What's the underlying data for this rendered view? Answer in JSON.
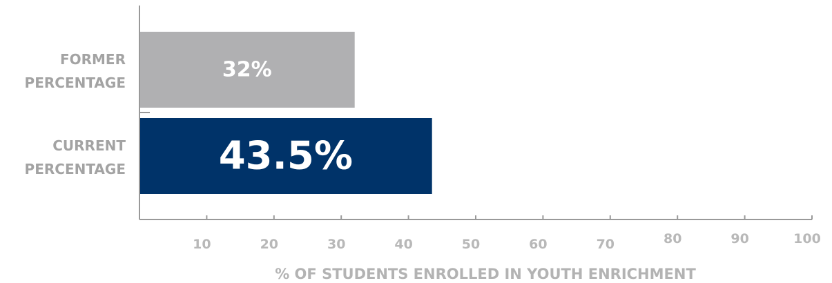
{
  "chart_data": {
    "type": "bar",
    "orientation": "horizontal",
    "categories": [
      "FORMER\nPERCENTAGE",
      "CURRENT\nPERCENTAGE"
    ],
    "values": [
      32,
      43.5
    ],
    "data_labels": [
      "32%",
      "43.5%"
    ],
    "colors": [
      "#b0b0b2",
      "#003369"
    ],
    "xlabel": "% OF STUDENTS ENROLLED IN YOUTH ENRICHMENT",
    "ylabel": "",
    "title": "",
    "xlim": [
      0,
      100
    ],
    "xticks": [
      10,
      20,
      30,
      40,
      50,
      60,
      70,
      80,
      90,
      100
    ],
    "grid": false,
    "legend": "none"
  }
}
